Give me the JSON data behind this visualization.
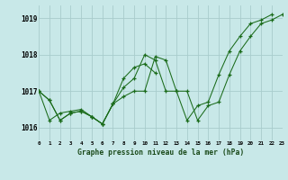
{
  "title": "Graphe pression niveau de la mer (hPa)",
  "bg_color": "#c8e8e8",
  "grid_color": "#a8cccc",
  "line_color": "#1a6b1a",
  "xlim": [
    0,
    23
  ],
  "ylim": [
    1015.65,
    1019.35
  ],
  "yticks": [
    1016,
    1017,
    1018,
    1019
  ],
  "xtick_labels": [
    "0",
    "1",
    "2",
    "3",
    "4",
    "5",
    "6",
    "7",
    "8",
    "9",
    "10",
    "11",
    "12",
    "13",
    "14",
    "15",
    "16",
    "17",
    "18",
    "19",
    "20",
    "21",
    "22",
    "23"
  ],
  "xtick_pos": [
    0,
    1,
    2,
    3,
    4,
    5,
    6,
    7,
    8,
    9,
    10,
    11,
    12,
    13,
    14,
    15,
    16,
    17,
    18,
    19,
    20,
    21,
    22,
    23
  ],
  "series1_x": [
    0,
    1,
    2,
    3,
    4,
    5,
    6,
    7,
    8,
    9,
    10,
    11,
    12,
    13,
    14,
    15,
    16,
    17,
    18,
    19,
    20,
    21,
    22,
    23
  ],
  "series1_y": [
    1017.0,
    1016.75,
    1016.2,
    1016.4,
    1016.45,
    1016.3,
    1016.1,
    1016.65,
    1016.85,
    1017.0,
    1017.0,
    1017.95,
    1017.85,
    1017.0,
    1017.0,
    1016.2,
    1016.6,
    1016.7,
    1017.45,
    1018.1,
    1018.5,
    1018.85,
    1018.95,
    1019.1
  ],
  "series2_x": [
    0,
    1,
    2,
    3,
    4,
    5,
    6,
    7,
    8,
    9,
    10,
    11,
    12,
    13,
    14,
    15,
    16,
    17,
    18,
    19,
    20,
    21,
    22,
    23
  ],
  "series2_y": [
    1017.0,
    1016.75,
    1016.2,
    1016.4,
    1016.45,
    1016.3,
    1016.1,
    1016.65,
    1017.1,
    1017.35,
    1018.0,
    1017.85,
    1017.0,
    1017.0,
    1016.2,
    1016.6,
    1016.7,
    1017.45,
    1018.1,
    1018.5,
    1018.85,
    1018.95,
    1019.1,
    null
  ],
  "series3_x": [
    0,
    1,
    2,
    3,
    4,
    5,
    6,
    7,
    8,
    9,
    10,
    11,
    12,
    13,
    14,
    15,
    16,
    17,
    18,
    19,
    20,
    21,
    22,
    23
  ],
  "series3_y": [
    1017.0,
    1016.2,
    1016.4,
    1016.45,
    1016.5,
    1016.3,
    1016.1,
    1016.65,
    1017.35,
    1017.65,
    1017.75,
    1017.5,
    null,
    null,
    null,
    null,
    null,
    null,
    null,
    null,
    null,
    null,
    null,
    null
  ]
}
